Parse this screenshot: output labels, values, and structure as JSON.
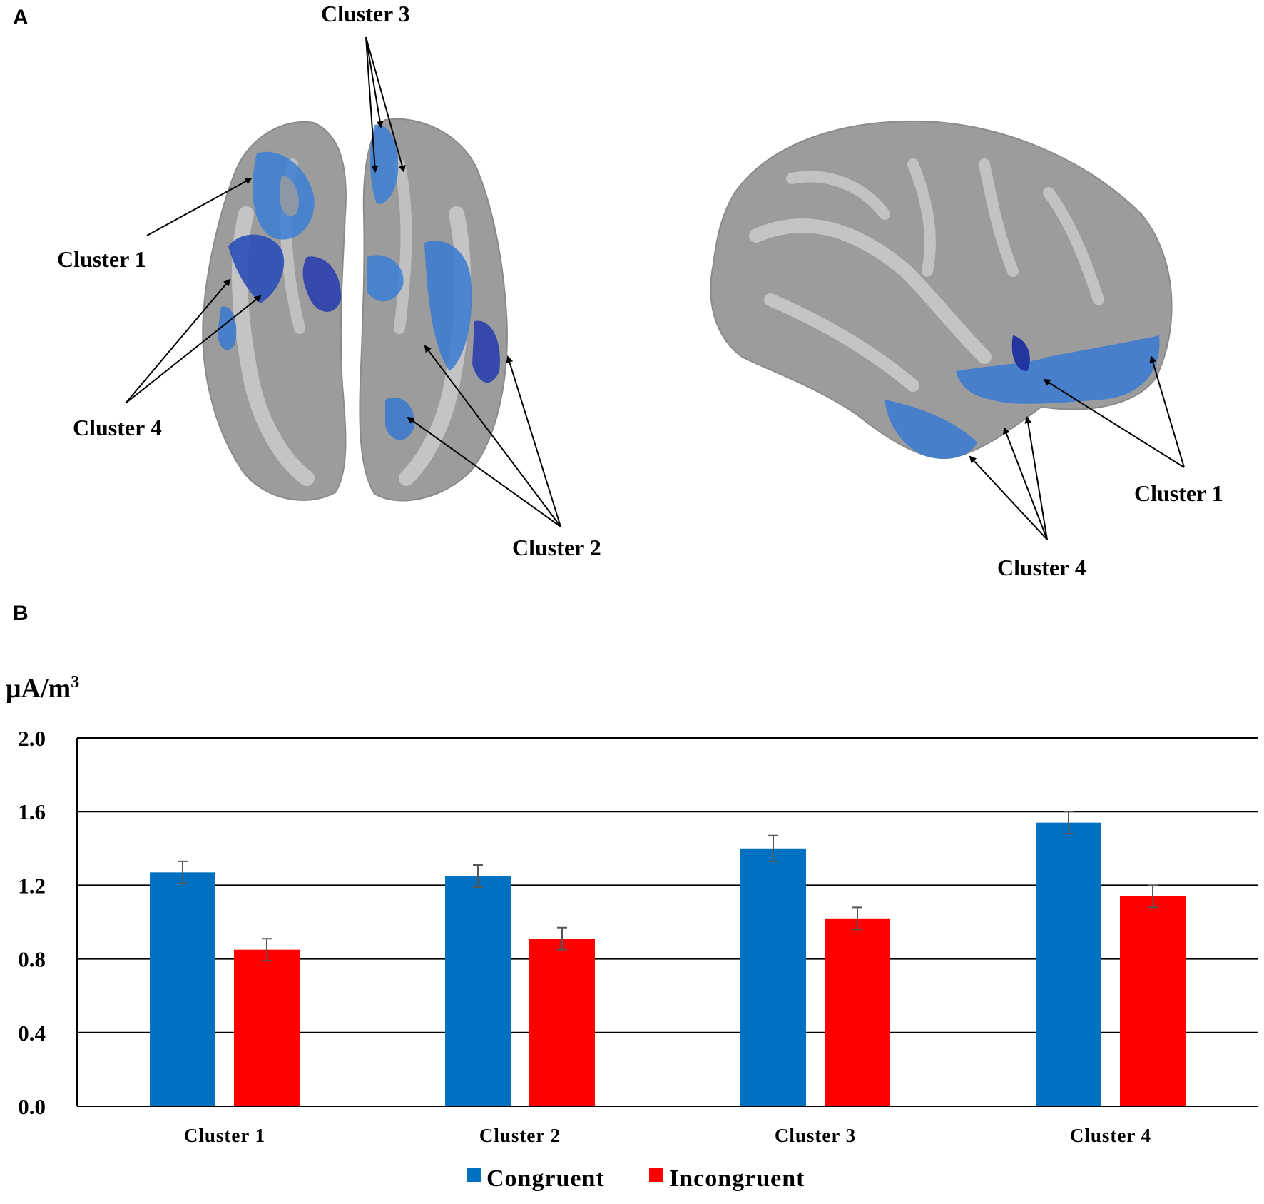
{
  "panels": {
    "a_label": "A",
    "b_label": "B"
  },
  "brain_labels": {
    "top_cluster3": "Cluster 3",
    "left_cluster1": "Cluster 1",
    "left_cluster4": "Cluster 4",
    "bottom_cluster2": "Cluster 2",
    "lateral_cluster1": "Cluster 1",
    "lateral_cluster4": "Cluster 4"
  },
  "colors": {
    "congruent": "#0070C0",
    "incongruent": "#FF0000",
    "brain_gray": "#9a9a9a",
    "activation_blue": "#2f6fd0"
  },
  "chart_data": {
    "type": "bar",
    "unit_label": "μA/m",
    "unit_superscript": "3",
    "categories": [
      "Cluster 1",
      "Cluster 2",
      "Cluster 3",
      "Cluster 4"
    ],
    "series": [
      {
        "name": "Congruent",
        "values": [
          1.27,
          1.25,
          1.4,
          1.54
        ],
        "errors": [
          0.06,
          0.06,
          0.07,
          0.06
        ]
      },
      {
        "name": "Incongruent",
        "values": [
          0.85,
          0.91,
          1.02,
          1.14
        ],
        "errors": [
          0.06,
          0.06,
          0.06,
          0.06
        ]
      }
    ],
    "yticks": [
      "0.0",
      "0.4",
      "0.8",
      "1.2",
      "1.6",
      "2.0"
    ],
    "ylim": [
      0,
      2.0
    ],
    "grid": true,
    "legend_position": "bottom"
  }
}
